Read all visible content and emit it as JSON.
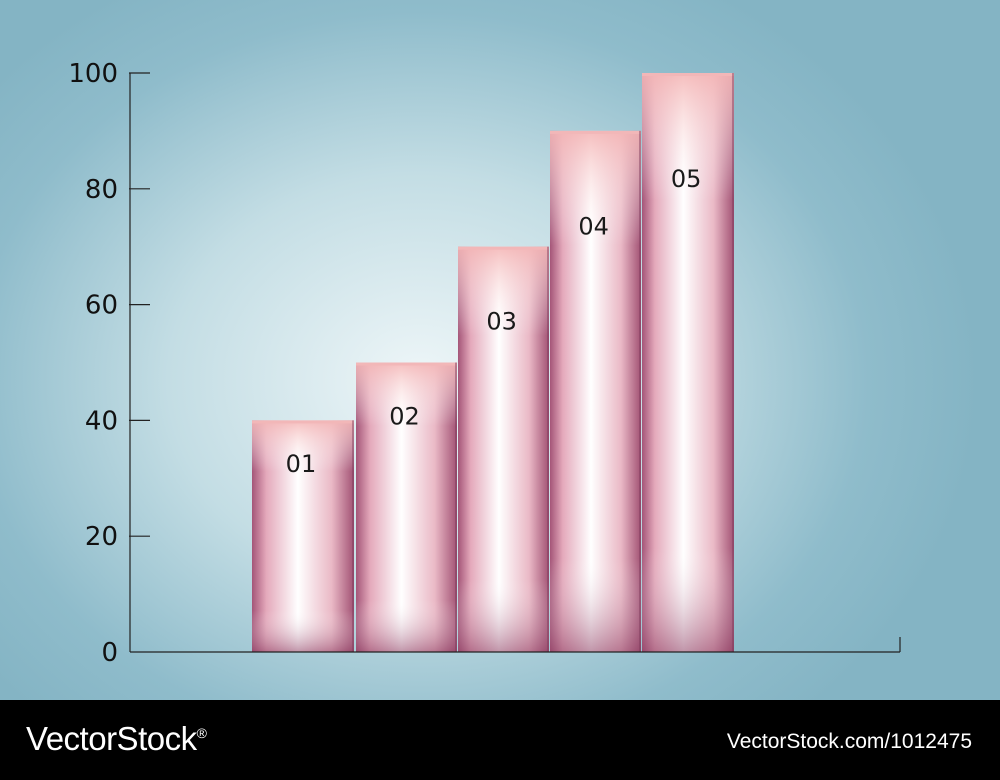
{
  "chart_data": {
    "type": "bar",
    "categories": [
      "01",
      "02",
      "03",
      "04",
      "05"
    ],
    "values": [
      40,
      50,
      70,
      90,
      100
    ],
    "title": "",
    "xlabel": "",
    "ylabel": "",
    "ylim": [
      0,
      100
    ],
    "yticks": [
      "0",
      "20",
      "40",
      "60",
      "80",
      "100"
    ],
    "grid": false,
    "legend": "none",
    "colors": {
      "bar_top": "#f2b7b8",
      "bar_glow": "#ffffff",
      "bar_base": "#9c4f72",
      "axis": "#222222"
    }
  },
  "footer": {
    "brand": "VectorStock",
    "brand_mark": "®",
    "image_ref": "VectorStock.com/1012475"
  }
}
